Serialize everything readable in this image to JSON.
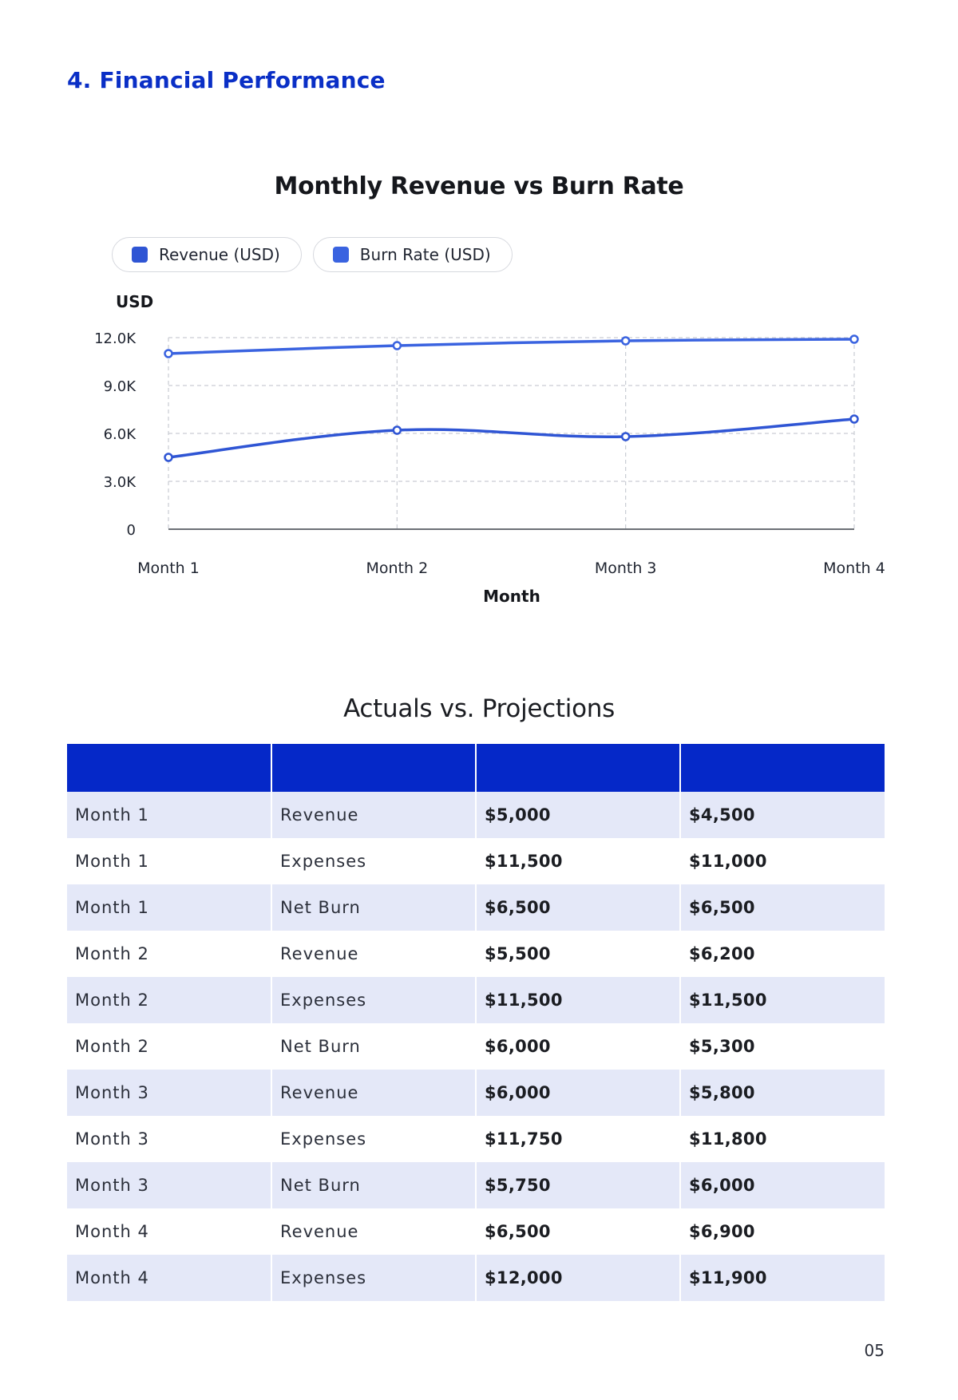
{
  "section": {
    "title": "4. Financial Performance"
  },
  "chart_data": {
    "type": "line",
    "title": "Monthly Revenue vs Burn Rate",
    "xlabel": "Month",
    "ylabel": "USD",
    "categories": [
      "Month 1",
      "Month 2",
      "Month 3",
      "Month 4"
    ],
    "y_ticks": [
      "0",
      "3.0K",
      "6.0K",
      "9.0K",
      "12.0K"
    ],
    "y_tick_values": [
      0,
      3000,
      6000,
      9000,
      12000
    ],
    "ylim": [
      0,
      12000
    ],
    "grid": true,
    "legend_position": "top-left",
    "series": [
      {
        "name": "Revenue (USD)",
        "values": [
          4500,
          6200,
          5800,
          6900
        ],
        "color": "#2f55d4"
      },
      {
        "name": "Burn Rate (USD)",
        "values": [
          11000,
          11500,
          11800,
          11900
        ],
        "color": "#3a63e0"
      }
    ]
  },
  "table": {
    "title": "Actuals vs. Projections",
    "headers": [
      "",
      "",
      "",
      ""
    ],
    "rows": [
      [
        "Month 1",
        "Revenue",
        "$5,000",
        "$4,500"
      ],
      [
        "Month 1",
        "Expenses",
        "$11,500",
        "$11,000"
      ],
      [
        "Month 1",
        "Net Burn",
        "$6,500",
        "$6,500"
      ],
      [
        "Month 2",
        "Revenue",
        "$5,500",
        "$6,200"
      ],
      [
        "Month 2",
        "Expenses",
        "$11,500",
        "$11,500"
      ],
      [
        "Month 2",
        "Net Burn",
        "$6,000",
        "$5,300"
      ],
      [
        "Month 3",
        "Revenue",
        "$6,000",
        "$5,800"
      ],
      [
        "Month 3",
        "Expenses",
        "$11,750",
        "$11,800"
      ],
      [
        "Month 3",
        "Net Burn",
        "$5,750",
        "$6,000"
      ],
      [
        "Month 4",
        "Revenue",
        "$6,500",
        "$6,900"
      ],
      [
        "Month 4",
        "Expenses",
        "$12,000",
        "$11,900"
      ]
    ]
  },
  "page": {
    "number": "05"
  }
}
